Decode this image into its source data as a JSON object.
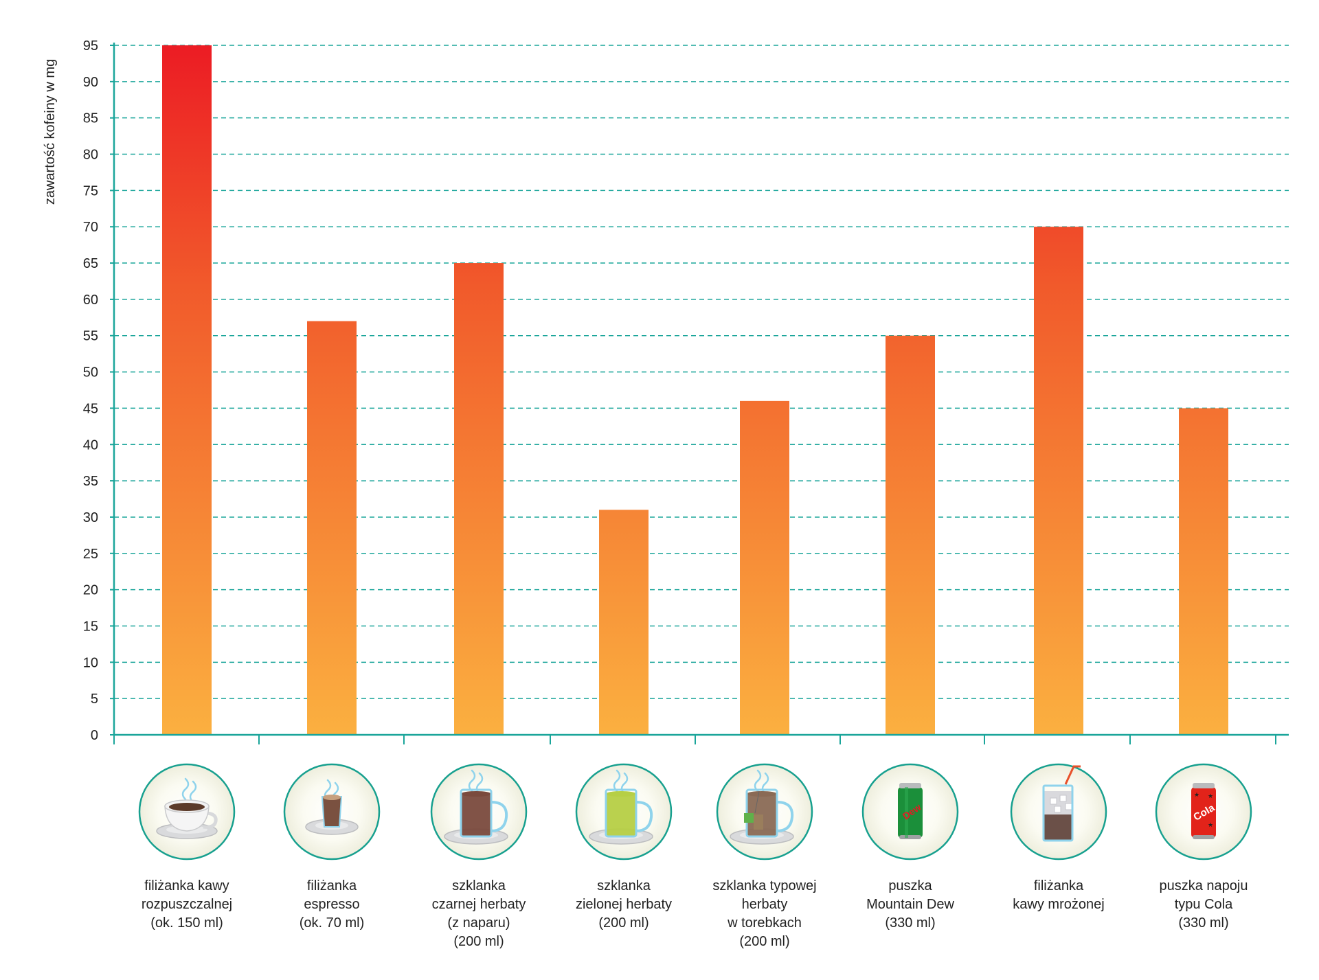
{
  "chart_data": {
    "type": "bar",
    "ylabel": "zawartość kofeiny w mg",
    "xlabel": "",
    "title": "",
    "ylim": [
      0,
      95
    ],
    "yticks": [
      0,
      5,
      10,
      15,
      20,
      25,
      30,
      35,
      40,
      45,
      50,
      55,
      60,
      65,
      70,
      75,
      80,
      85,
      90,
      95
    ],
    "grid": "horizontal-dashed",
    "categories": [
      {
        "label_lines": [
          "filiżanka kawy",
          "rozpuszczalnej",
          "(ok. 150 ml)"
        ],
        "icon": "coffee-cup-icon"
      },
      {
        "label_lines": [
          "filiżanka",
          "espresso",
          "(ok. 70 ml)"
        ],
        "icon": "espresso-cup-icon"
      },
      {
        "label_lines": [
          "szklanka",
          "czarnej herbaty",
          "(z naparu)",
          "(200 ml)"
        ],
        "icon": "black-tea-glass-icon"
      },
      {
        "label_lines": [
          "szklanka",
          "zielonej herbaty",
          "(200 ml)"
        ],
        "icon": "green-tea-glass-icon"
      },
      {
        "label_lines": [
          "szklanka typowej",
          "herbaty",
          "w torebkach",
          "(200 ml)"
        ],
        "icon": "teabag-glass-icon"
      },
      {
        "label_lines": [
          "puszka",
          "Mountain Dew",
          "(330 ml)"
        ],
        "icon": "mountain-dew-can-icon"
      },
      {
        "label_lines": [
          "filiżanka",
          "kawy mrożonej"
        ],
        "icon": "iced-coffee-glass-icon"
      },
      {
        "label_lines": [
          "puszka napoju",
          "typu Cola",
          "(330 ml)"
        ],
        "icon": "cola-can-icon"
      }
    ],
    "values": [
      95,
      57,
      65,
      31,
      46,
      55,
      70,
      45
    ],
    "icon_texts": {
      "dew": "Dew",
      "cola": "Cola"
    }
  },
  "colors": {
    "bar_top": "#ec1c24",
    "bar_mid": "#f15a2b",
    "bar_bottom": "#fbb040",
    "axis": "#1aa59a",
    "grid": "#1aa59a",
    "circle_stroke": "#17a08f",
    "text": "#222222"
  }
}
